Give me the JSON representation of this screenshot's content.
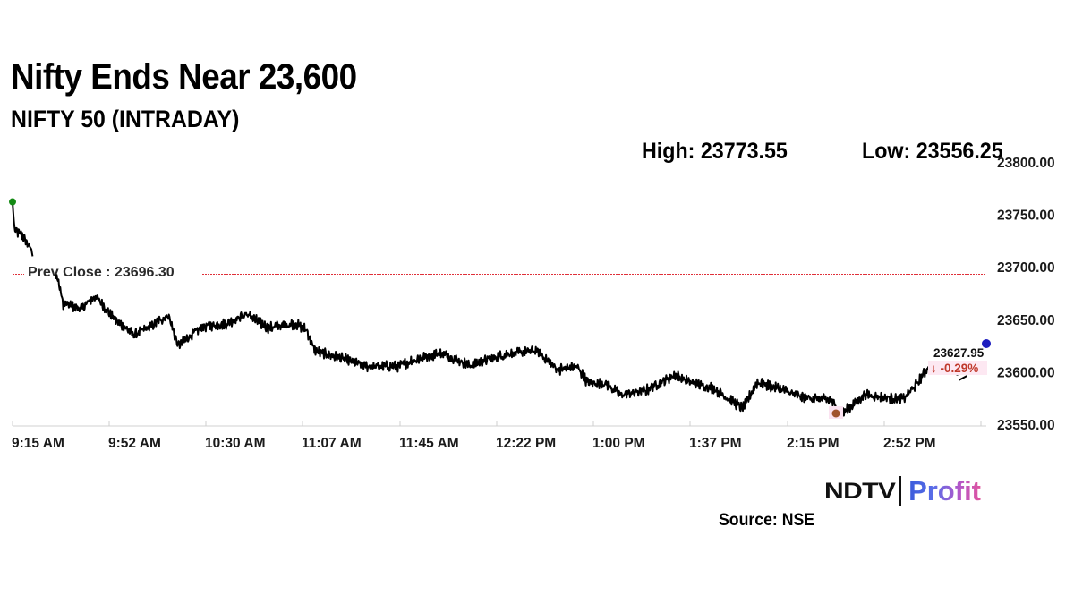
{
  "header": {
    "title": "Nifty Ends Near 23,600",
    "subtitle": "NIFTY 50 (INTRADAY)"
  },
  "stats": {
    "high_label": "High: 23773.55",
    "low_label": "Low: 23556.25"
  },
  "chart_data": {
    "type": "line",
    "title": "NIFTY 50 (INTRADAY)",
    "xlabel": "",
    "ylabel": "",
    "ylim": [
      23550,
      23800
    ],
    "grid": false,
    "legend": "none",
    "y_ticks": [
      "23800.00",
      "23750.00",
      "23700.00",
      "23650.00",
      "23600.00",
      "23550.00"
    ],
    "x_ticks": [
      "9:15 AM",
      "9:52 AM",
      "10:30 AM",
      "11:07 AM",
      "11:45 AM",
      "12:22 PM",
      "1:00 PM",
      "1:37 PM",
      "2:15 PM",
      "2:52 PM"
    ],
    "high": 23773.55,
    "low": 23556.25,
    "prev_close": 23696.3,
    "prev_close_label": "Prev Close : 23696.30",
    "last_value": "23627.95",
    "last_change": "↓ -0.29%",
    "series": [
      {
        "name": "NIFTY 50",
        "anchors": [
          {
            "t": 0.0,
            "v": 23762
          },
          {
            "t": 0.002,
            "v": 23735
          },
          {
            "t": 0.01,
            "v": 23730
          },
          {
            "t": 0.02,
            "v": 23715
          },
          {
            "t": 0.046,
            "v": 23690
          },
          {
            "t": 0.052,
            "v": 23665
          },
          {
            "t": 0.07,
            "v": 23660
          },
          {
            "t": 0.085,
            "v": 23672
          },
          {
            "t": 0.105,
            "v": 23650
          },
          {
            "t": 0.125,
            "v": 23635
          },
          {
            "t": 0.145,
            "v": 23645
          },
          {
            "t": 0.16,
            "v": 23654
          },
          {
            "t": 0.17,
            "v": 23625
          },
          {
            "t": 0.195,
            "v": 23643
          },
          {
            "t": 0.22,
            "v": 23646
          },
          {
            "t": 0.24,
            "v": 23655
          },
          {
            "t": 0.262,
            "v": 23642
          },
          {
            "t": 0.29,
            "v": 23646
          },
          {
            "t": 0.302,
            "v": 23640
          },
          {
            "t": 0.31,
            "v": 23620
          },
          {
            "t": 0.34,
            "v": 23612
          },
          {
            "t": 0.365,
            "v": 23605
          },
          {
            "t": 0.395,
            "v": 23605
          },
          {
            "t": 0.415,
            "v": 23612
          },
          {
            "t": 0.44,
            "v": 23618
          },
          {
            "t": 0.47,
            "v": 23606
          },
          {
            "t": 0.49,
            "v": 23612
          },
          {
            "t": 0.51,
            "v": 23617
          },
          {
            "t": 0.538,
            "v": 23620
          },
          {
            "t": 0.56,
            "v": 23602
          },
          {
            "t": 0.58,
            "v": 23605
          },
          {
            "t": 0.59,
            "v": 23590
          },
          {
            "t": 0.61,
            "v": 23588
          },
          {
            "t": 0.625,
            "v": 23578
          },
          {
            "t": 0.65,
            "v": 23582
          },
          {
            "t": 0.68,
            "v": 23597
          },
          {
            "t": 0.695,
            "v": 23590
          },
          {
            "t": 0.72,
            "v": 23584
          },
          {
            "t": 0.75,
            "v": 23565
          },
          {
            "t": 0.765,
            "v": 23590
          },
          {
            "t": 0.79,
            "v": 23583
          },
          {
            "t": 0.81,
            "v": 23576
          },
          {
            "t": 0.84,
            "v": 23573
          },
          {
            "t": 0.852,
            "v": 23560
          },
          {
            "t": 0.875,
            "v": 23578
          },
          {
            "t": 0.9,
            "v": 23575
          },
          {
            "t": 0.915,
            "v": 23574
          },
          {
            "t": 0.93,
            "v": 23590
          },
          {
            "t": 0.942,
            "v": 23607
          }
        ],
        "tail": [
          {
            "t": 0.972,
            "v": 23592
          },
          {
            "t": 0.98,
            "v": 23596
          }
        ]
      }
    ],
    "markers": {
      "high_color": "#138a13",
      "low_color": "#a0522d",
      "last_color": "#1f1fbf",
      "prev_close_color": "#e0303a"
    }
  },
  "branding": {
    "ndtv": "NDTV",
    "profit": "Profit",
    "source": "Source: NSE"
  }
}
